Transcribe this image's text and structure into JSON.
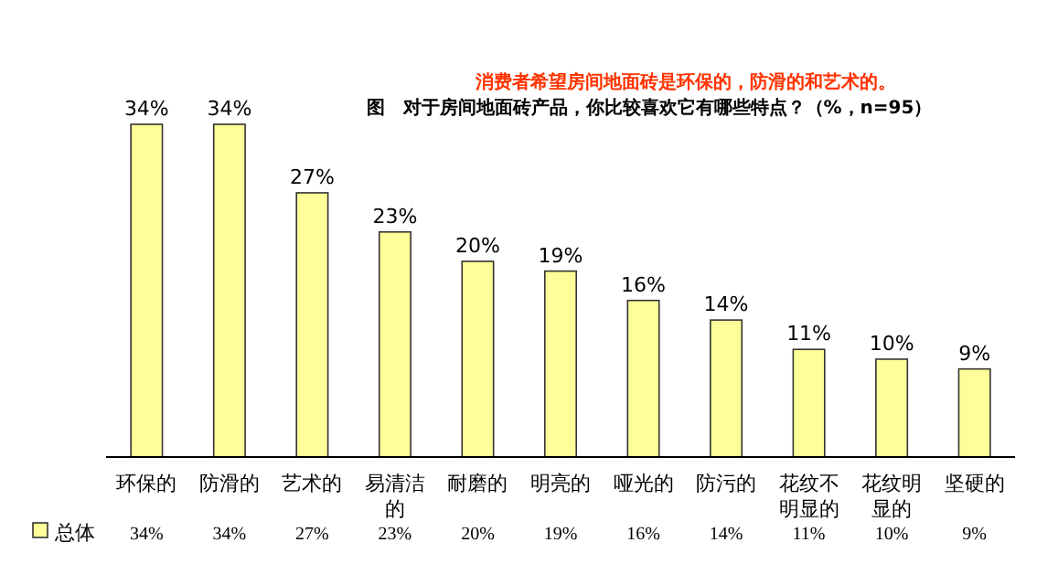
{
  "chart_data": {
    "type": "bar",
    "title": "消费者希望房间地面砖是环保的，防滑的和艺术的。",
    "subtitle": "图　对于房间地面砖产品，你比较喜欢它有哪些特点？（%，n=95）",
    "categories": [
      "环保的",
      "防滑的",
      "艺术的",
      "易清洁的",
      "耐磨的",
      "明亮的",
      "哑光的",
      "防污的",
      "花纹不明显的",
      "花纹明显的",
      "坚硬的"
    ],
    "series": [
      {
        "name": "总体",
        "color": "#ffff99",
        "values": [
          34,
          34,
          27,
          23,
          20,
          19,
          16,
          14,
          11,
          10,
          9
        ],
        "value_labels": [
          "34%",
          "34%",
          "27%",
          "23%",
          "20%",
          "19%",
          "16%",
          "14%",
          "11%",
          "10%",
          "9%"
        ]
      }
    ],
    "data_labels": true,
    "legend": "bottom",
    "grid": false
  }
}
